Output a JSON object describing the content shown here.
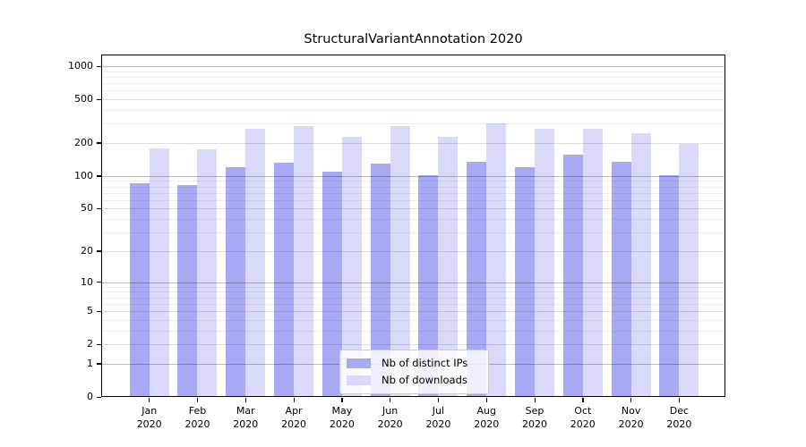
{
  "chart_data": {
    "type": "bar",
    "title": "StructuralVariantAnnotation 2020",
    "categories": [
      "Jan",
      "Feb",
      "Mar",
      "Apr",
      "May",
      "Jun",
      "Jul",
      "Aug",
      "Sep",
      "Oct",
      "Nov",
      "Dec"
    ],
    "category_year": "2020",
    "series": [
      {
        "name": "Nb of distinct IPs",
        "color": "#a8a8f5",
        "values": [
          85,
          82,
          120,
          133,
          110,
          130,
          102,
          136,
          120,
          156,
          135,
          101
        ]
      },
      {
        "name": "Nb of downloads",
        "color": "#d9d9fa",
        "values": [
          180,
          175,
          268,
          287,
          228,
          285,
          228,
          304,
          268,
          272,
          247,
          197
        ]
      }
    ],
    "yscale": "log1p",
    "yticks": [
      0,
      1,
      2,
      5,
      10,
      20,
      50,
      100,
      200,
      500,
      1000
    ],
    "ylim": [
      0,
      1280
    ],
    "xlabel": "",
    "ylabel": "",
    "grid": true,
    "grid_above_bars": true,
    "legend_position": "bottom-center",
    "spine_color": "#000000",
    "background_color": "#ffffff"
  }
}
